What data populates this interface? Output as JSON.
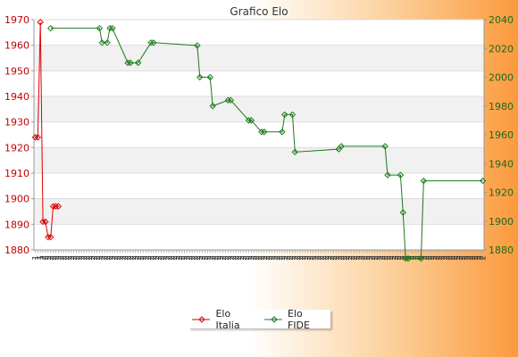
{
  "chart_data": {
    "type": "line",
    "title": "Grafico Elo",
    "legend_position": "bottom",
    "grid": true,
    "y_left_ticks": [
      "1880",
      "1890",
      "1900",
      "1910",
      "1920",
      "1930",
      "1940",
      "1950",
      "1960",
      "1970"
    ],
    "y_right_ticks": [
      "1880",
      "1900",
      "1920",
      "1940",
      "1960",
      "1980",
      "2000",
      "2020",
      "2040"
    ],
    "ylim_left": [
      1880,
      1970
    ],
    "ylim_right": [
      1880,
      2040
    ],
    "x_count": 175,
    "x_tick_labels": [
      "1",
      "1",
      "1",
      "2",
      "2",
      "2",
      "2",
      "2",
      "2",
      "2",
      "2",
      "2",
      "2",
      "2",
      "2",
      "2",
      "2",
      "2",
      "2",
      "2",
      "2",
      "2",
      "2",
      "2",
      "2",
      "2",
      "2",
      "2",
      "2",
      "2",
      "2",
      "2",
      "2",
      "2",
      "2",
      "2",
      "2",
      "2",
      "2",
      "2",
      "2",
      "2",
      "2",
      "2",
      "2",
      "2",
      "2",
      "2",
      "2",
      "2",
      "2",
      "2",
      "2",
      "2",
      "2",
      "2",
      "2",
      "2",
      "2",
      "2",
      "2",
      "2",
      "2",
      "2",
      "2",
      "2",
      "2",
      "2",
      "2",
      "2",
      "2",
      "2",
      "2",
      "2",
      "2",
      "2",
      "2",
      "2",
      "2",
      "2",
      "2",
      "2",
      "2",
      "2",
      "2",
      "2",
      "2",
      "2",
      "2",
      "2",
      "2",
      "2",
      "2",
      "2",
      "2",
      "2",
      "2",
      "2",
      "2",
      "2",
      "2",
      "2",
      "2",
      "2",
      "2",
      "2",
      "2",
      "2",
      "2",
      "2",
      "2",
      "2",
      "2",
      "2",
      "2",
      "2",
      "2",
      "2",
      "2",
      "2",
      "2",
      "2",
      "2",
      "2",
      "2",
      "2",
      "2",
      "2",
      "2",
      "2",
      "2",
      "2",
      "2",
      "2",
      "2",
      "2",
      "2",
      "2",
      "2",
      "2",
      "2",
      "2",
      "2",
      "2",
      "2",
      "2",
      "2",
      "2",
      "2",
      "2",
      "2",
      "2",
      "2",
      "2",
      "2",
      "2",
      "2",
      "2",
      "2",
      "2",
      "2",
      "2",
      "2",
      "2",
      "2",
      "2",
      "2",
      "2",
      "2",
      "2",
      "2",
      "2",
      "2",
      "2",
      "2"
    ],
    "series": [
      {
        "name": "Elo Italia",
        "axis": "left",
        "color": "#dd0000",
        "x": [
          0,
          1,
          2,
          3,
          4,
          5,
          6,
          7,
          8,
          9
        ],
        "y": [
          1924,
          1924,
          1969,
          1891,
          1891,
          1885,
          1885,
          1897,
          1897,
          1897
        ]
      },
      {
        "name": "Elo FIDE",
        "axis": "right",
        "color": "#1a7a1a",
        "x": [
          6,
          25,
          26,
          28,
          29,
          30,
          36,
          37,
          40,
          45,
          46,
          63,
          64,
          68,
          69,
          75,
          76,
          83,
          84,
          88,
          89,
          96,
          97,
          100,
          101,
          118,
          119,
          136,
          137,
          142,
          143,
          144,
          145,
          150,
          151,
          174
        ],
        "y": [
          2034,
          2034,
          2024,
          2024,
          2034,
          2034,
          2010,
          2010,
          2010,
          2024,
          2024,
          2022,
          2000,
          2000,
          1980,
          1984,
          1984,
          1970,
          1970,
          1962,
          1962,
          1962,
          1974,
          1974,
          1948,
          1950,
          1952,
          1952,
          1932,
          1932,
          1906,
          1874,
          1874,
          1874,
          1928,
          1928
        ]
      }
    ]
  }
}
